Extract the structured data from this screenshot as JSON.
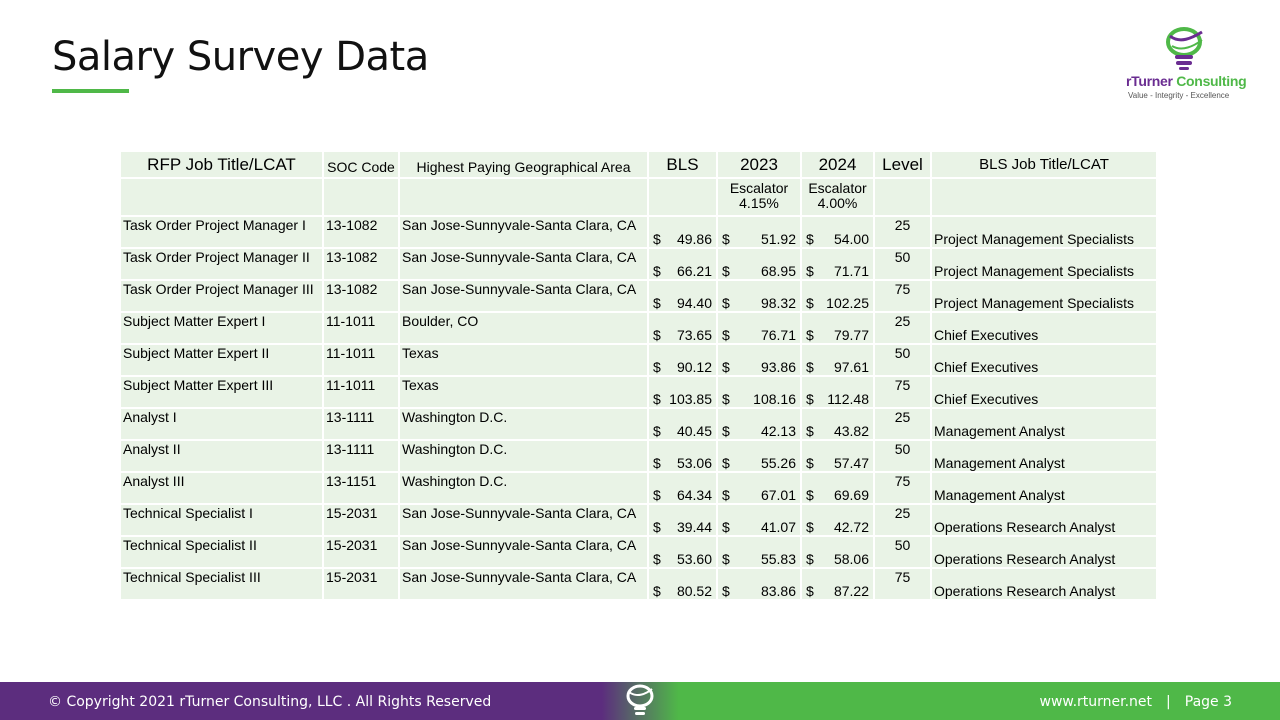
{
  "header": {
    "title": "Salary Survey Data",
    "accent_color": "#4fb848",
    "brand_color": "#6a2c91"
  },
  "logo": {
    "name_part1": "rTurner",
    "name_part2": "Consulting",
    "tagline": "Value - Integrity - Excellence"
  },
  "table": {
    "headers": {
      "job_title": "RFP Job Title/LCAT",
      "soc": "SOC Code",
      "area": "Highest Paying Geographical Area",
      "bls": "BLS",
      "y2023": "2023",
      "y2024": "2024",
      "level": "Level",
      "bls_title": "BLS Job Title/LCAT"
    },
    "subheaders": {
      "esc2023_label": "Escalator",
      "esc2023_value": "4.15%",
      "esc2024_label": "Escalator",
      "esc2024_value": "4.00%"
    },
    "currency_symbol": "$",
    "rows": [
      {
        "title": "Task Order Project Manager  I",
        "soc": "13-1082",
        "area": "San Jose-Sunnyvale-Santa Clara, CA",
        "bls": "49.86",
        "y2023": "51.92",
        "y2024": "54.00",
        "level": "25",
        "bls_title": "Project Management Specialists"
      },
      {
        "title": "Task Order Project Manager  II",
        "soc": "13-1082",
        "area": "San Jose-Sunnyvale-Santa Clara, CA",
        "bls": "66.21",
        "y2023": "68.95",
        "y2024": "71.71",
        "level": "50",
        "bls_title": "Project Management Specialists"
      },
      {
        "title": "Task Order Project Manager III",
        "soc": "13-1082",
        "area": "San Jose-Sunnyvale-Santa Clara, CA",
        "bls": "94.40",
        "y2023": "98.32",
        "y2024": "102.25",
        "level": "75",
        "bls_title": "Project Management Specialists"
      },
      {
        "title": "Subject Matter Expert I",
        "soc": "11-1011",
        "area": "Boulder, CO",
        "bls": "73.65",
        "y2023": "76.71",
        "y2024": "79.77",
        "level": "25",
        "bls_title": "Chief Executives"
      },
      {
        "title": "Subject Matter Expert II",
        "soc": "11-1011",
        "area": "Texas",
        "bls": "90.12",
        "y2023": "93.86",
        "y2024": "97.61",
        "level": "50",
        "bls_title": "Chief Executives"
      },
      {
        "title": "Subject Matter Expert III",
        "soc": "11-1011",
        "area": "Texas",
        "bls": "103.85",
        "y2023": "108.16",
        "y2024": "112.48",
        "level": "75",
        "bls_title": "Chief Executives"
      },
      {
        "title": "Analyst I",
        "soc": "13-1111",
        "area": "Washington D.C.",
        "bls": "40.45",
        "y2023": "42.13",
        "y2024": "43.82",
        "level": "25",
        "bls_title": "Management Analyst"
      },
      {
        "title": "Analyst II",
        "soc": "13-1111",
        "area": "Washington D.C.",
        "bls": "53.06",
        "y2023": "55.26",
        "y2024": "57.47",
        "level": "50",
        "bls_title": "Management Analyst"
      },
      {
        "title": "Analyst III",
        "soc": "13-1151",
        "area": "Washington D.C.",
        "bls": "64.34",
        "y2023": "67.01",
        "y2024": "69.69",
        "level": "75",
        "bls_title": "Management Analyst"
      },
      {
        "title": "Technical Specialist I",
        "soc": "15-2031",
        "area": "San Jose-Sunnyvale-Santa Clara, CA",
        "bls": "39.44",
        "y2023": "41.07",
        "y2024": "42.72",
        "level": "25",
        "bls_title": "Operations Research Analyst"
      },
      {
        "title": "Technical Specialist II",
        "soc": "15-2031",
        "area": "San Jose-Sunnyvale-Santa Clara, CA",
        "bls": "53.60",
        "y2023": "55.83",
        "y2024": "58.06",
        "level": "50",
        "bls_title": "Operations Research Analyst"
      },
      {
        "title": "Technical Specialist III",
        "soc": "15-2031",
        "area": "San Jose-Sunnyvale-Santa Clara, CA",
        "bls": "80.52",
        "y2023": "83.86",
        "y2024": "87.22",
        "level": "75",
        "bls_title": "Operations Research Analyst"
      }
    ]
  },
  "footer": {
    "copyright": "© Copyright 2021 rTurner Consulting, LLC . All Rights Reserved",
    "url": "www.rturner.net",
    "separator": "|",
    "page": "Page  3"
  }
}
